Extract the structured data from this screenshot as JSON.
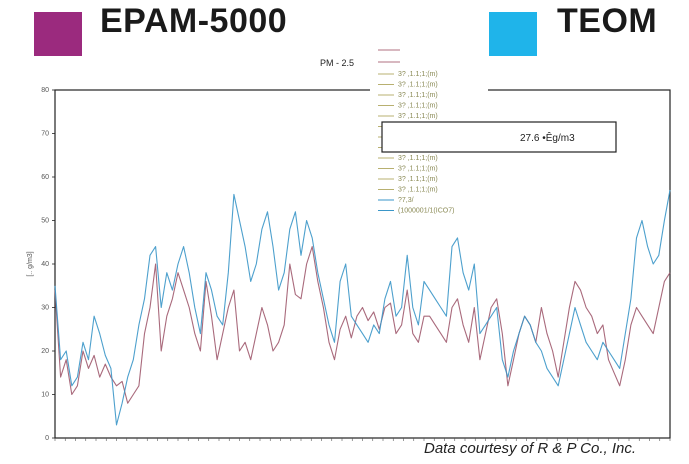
{
  "header": {
    "series_a": {
      "label": "EPAM-5000",
      "color": "#9b2a7e"
    },
    "series_b": {
      "label": "TEOM",
      "color": "#1fb4ea"
    }
  },
  "chart_data": {
    "type": "line",
    "title": "PM - 2.5",
    "ylabel": "[.. g/m3]",
    "xlabel": "",
    "ylim": [
      0,
      80
    ],
    "yticks": [
      "0",
      "10",
      "20",
      "30",
      "40",
      "50",
      "60",
      "70",
      "80"
    ],
    "grid": false,
    "annotation": "27.6 •Êg/m3",
    "legend_items": [
      "3? ,1.1;1;(m)",
      "3? ,1.1;1;(m)",
      "3? ,1.1;1;(m)",
      "3? ,1.1;1;(m)",
      "3? ,1.1;1;(m)",
      "3? ,1.1;1;(m)",
      "3? ,1.1;1;(m)",
      "3? ,1.1;1;(m)",
      "3? ,1.1;1;(m)",
      "3? ,1.1;1;(m)",
      "3? ,1.1;1;(m)",
      "3? ,1.1;1;(m)",
      "?7,3/",
      "(1000001/1(ICO7)"
    ],
    "series": [
      {
        "name": "EPAM-5000",
        "color": "#a05a6e",
        "values": [
          34,
          14,
          18,
          10,
          12,
          20,
          16,
          19,
          14,
          17,
          14,
          12,
          13,
          8,
          10,
          12,
          24,
          30,
          40,
          20,
          28,
          32,
          38,
          34,
          30,
          24,
          20,
          36,
          28,
          18,
          24,
          30,
          34,
          20,
          22,
          18,
          24,
          30,
          26,
          20,
          22,
          26,
          40,
          33,
          32,
          40,
          44,
          36,
          30,
          22,
          18,
          25,
          28,
          23,
          28,
          30,
          27,
          29,
          25,
          30,
          31,
          24,
          26,
          34,
          24,
          22,
          28,
          28,
          26,
          24,
          22,
          30,
          32,
          26,
          22,
          30,
          18,
          24,
          30,
          32,
          24,
          12,
          18,
          24,
          28,
          26,
          22,
          30,
          24,
          20,
          14,
          22,
          30,
          36,
          34,
          30,
          28,
          24,
          26,
          18,
          15,
          12,
          18,
          26,
          30,
          28,
          26,
          24,
          30,
          36,
          38
        ]
      },
      {
        "name": "TEOM",
        "color": "#3a96c8",
        "values": [
          35,
          18,
          20,
          12,
          14,
          22,
          18,
          28,
          24,
          19,
          16,
          3,
          8,
          14,
          18,
          26,
          32,
          42,
          44,
          30,
          38,
          34,
          40,
          44,
          38,
          30,
          24,
          38,
          34,
          28,
          26,
          38,
          56,
          50,
          44,
          36,
          40,
          48,
          52,
          44,
          34,
          38,
          48,
          52,
          42,
          50,
          46,
          38,
          32,
          26,
          22,
          36,
          40,
          28,
          26,
          24,
          22,
          26,
          24,
          32,
          36,
          28,
          30,
          42,
          30,
          26,
          36,
          34,
          32,
          30,
          28,
          44,
          46,
          38,
          34,
          40,
          24,
          26,
          28,
          30,
          18,
          14,
          20,
          24,
          28,
          26,
          22,
          20,
          16,
          14,
          12,
          18,
          24,
          30,
          26,
          22,
          20,
          18,
          22,
          20,
          18,
          16,
          24,
          32,
          46,
          50,
          44,
          40,
          42,
          50,
          57
        ]
      }
    ]
  },
  "footer": {
    "credit": "Data courtesy of R & P Co., Inc."
  }
}
